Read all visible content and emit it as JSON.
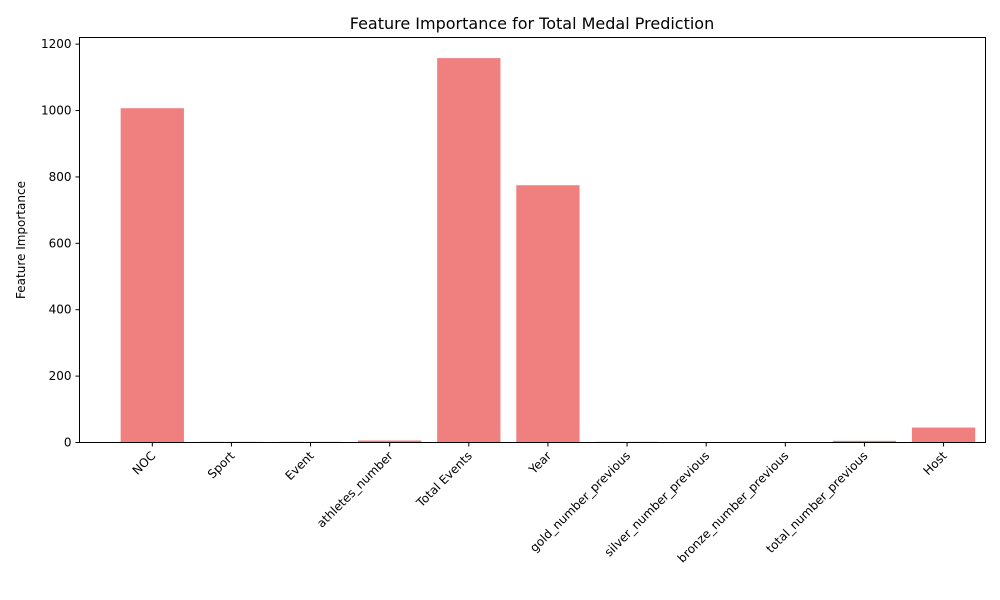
{
  "chart_data": {
    "type": "bar",
    "title": "Feature Importance for Total Medal Prediction",
    "xlabel": "",
    "ylabel": "Feature Importance",
    "categories": [
      "NOC",
      "Sport",
      "Event",
      "athletes_number",
      "Total Events",
      "Year",
      "gold_number_previous",
      "silver_number_previous",
      "bronze_number_previous",
      "total_number_previous",
      "Host"
    ],
    "values": [
      1007,
      2,
      2,
      6,
      1158,
      775,
      2,
      0,
      0,
      5,
      45
    ],
    "ylim": [
      0,
      1220
    ],
    "yticks": [
      0,
      200,
      400,
      600,
      800,
      1000,
      1200
    ],
    "grid": false,
    "bar_color": "#f08080"
  }
}
